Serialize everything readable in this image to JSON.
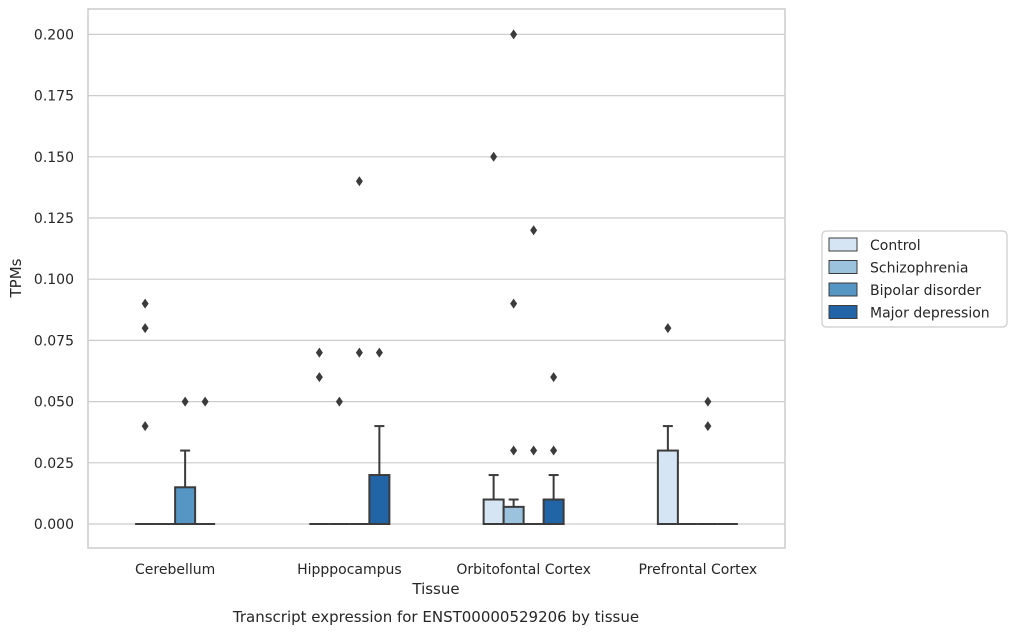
{
  "chart_data": {
    "type": "boxplot",
    "title": "Transcript expression for ENST00000529206 by tissue",
    "xlabel": "Tissue",
    "ylabel": "TPMs",
    "ylim": [
      -0.01,
      0.21
    ],
    "yticks": [
      "0.000",
      "0.025",
      "0.050",
      "0.075",
      "0.100",
      "0.125",
      "0.150",
      "0.175",
      "0.200"
    ],
    "ytick_values": [
      0,
      0.025,
      0.05,
      0.075,
      0.1,
      0.125,
      0.15,
      0.175,
      0.2
    ],
    "grid": true,
    "legend_position": "right",
    "categories": [
      "Cerebellum",
      "Hipppocampus",
      "Orbitofontal Cortex",
      "Prefrontal Cortex"
    ],
    "series": [
      {
        "name": "Control",
        "color": "#d6e5f4",
        "boxes": [
          {
            "q1": 0,
            "median": 0,
            "q3": 0,
            "whisker_low": 0,
            "whisker_high": 0,
            "outliers": [
              0.09,
              0.08,
              0.04
            ]
          },
          {
            "q1": 0,
            "median": 0,
            "q3": 0,
            "whisker_low": 0,
            "whisker_high": 0,
            "outliers": [
              0.07,
              0.06
            ]
          },
          {
            "q1": 0,
            "median": 0,
            "q3": 0.01,
            "whisker_low": 0,
            "whisker_high": 0.02,
            "outliers": [
              0.15
            ]
          },
          {
            "q1": 0,
            "median": 0,
            "q3": 0.03,
            "whisker_low": 0,
            "whisker_high": 0.04,
            "outliers": [
              0.08
            ]
          }
        ]
      },
      {
        "name": "Schizophrenia",
        "color": "#9bc3de",
        "boxes": [
          {
            "q1": 0,
            "median": 0,
            "q3": 0,
            "whisker_low": 0,
            "whisker_high": 0,
            "outliers": []
          },
          {
            "q1": 0,
            "median": 0,
            "q3": 0,
            "whisker_low": 0,
            "whisker_high": 0,
            "outliers": [
              0.05
            ]
          },
          {
            "q1": 0,
            "median": 0,
            "q3": 0.007,
            "whisker_low": 0,
            "whisker_high": 0.01,
            "outliers": [
              0.2,
              0.09,
              0.03
            ]
          },
          {
            "q1": 0,
            "median": 0,
            "q3": 0,
            "whisker_low": 0,
            "whisker_high": 0,
            "outliers": []
          }
        ]
      },
      {
        "name": "Bipolar disorder",
        "color": "#5596c4",
        "boxes": [
          {
            "q1": 0,
            "median": 0,
            "q3": 0.015,
            "whisker_low": 0,
            "whisker_high": 0.03,
            "outliers": [
              0.05
            ]
          },
          {
            "q1": 0,
            "median": 0,
            "q3": 0,
            "whisker_low": 0,
            "whisker_high": 0,
            "outliers": [
              0.14,
              0.07
            ]
          },
          {
            "q1": 0,
            "median": 0,
            "q3": 0,
            "whisker_low": 0,
            "whisker_high": 0,
            "outliers": [
              0.12,
              0.03
            ]
          },
          {
            "q1": 0,
            "median": 0,
            "q3": 0,
            "whisker_low": 0,
            "whisker_high": 0,
            "outliers": [
              0.05,
              0.04
            ]
          }
        ]
      },
      {
        "name": "Major depression",
        "color": "#2265a6",
        "boxes": [
          {
            "q1": 0,
            "median": 0,
            "q3": 0,
            "whisker_low": 0,
            "whisker_high": 0,
            "outliers": [
              0.05
            ]
          },
          {
            "q1": 0,
            "median": 0,
            "q3": 0.02,
            "whisker_low": 0,
            "whisker_high": 0.04,
            "outliers": [
              0.07
            ]
          },
          {
            "q1": 0,
            "median": 0,
            "q3": 0.01,
            "whisker_low": 0,
            "whisker_high": 0.02,
            "outliers": [
              0.06,
              0.03
            ]
          },
          {
            "q1": 0,
            "median": 0,
            "q3": 0,
            "whisker_low": 0,
            "whisker_high": 0,
            "outliers": []
          }
        ]
      }
    ]
  }
}
